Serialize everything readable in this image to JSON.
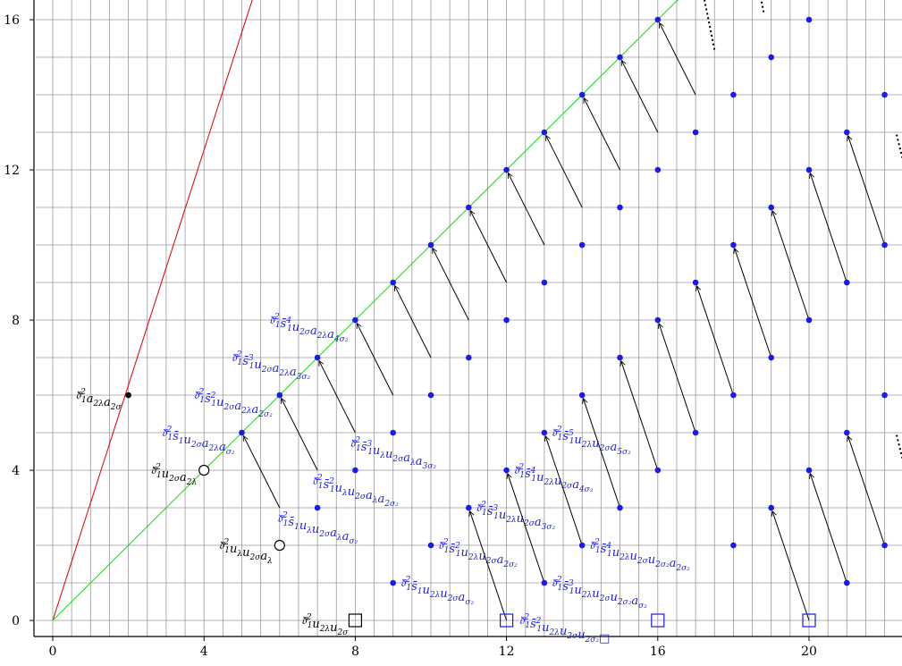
{
  "chart_data": {
    "type": "scatter",
    "xlim": [
      -0.5,
      22.5
    ],
    "ylim": [
      -0.5,
      17
    ],
    "grid": true,
    "x_ticks": [
      {
        "value": 0,
        "label": "0"
      },
      {
        "value": 4,
        "label": "4"
      },
      {
        "value": 8,
        "label": "8"
      },
      {
        "value": 12,
        "label": "12"
      },
      {
        "value": 16,
        "label": "16"
      },
      {
        "value": 20,
        "label": "20"
      }
    ],
    "y_ticks": [
      {
        "value": 0,
        "label": "0"
      },
      {
        "value": 4,
        "label": "4"
      },
      {
        "value": 8,
        "label": "8"
      },
      {
        "value": 12,
        "label": "12"
      },
      {
        "value": 16,
        "label": "16"
      }
    ],
    "colors": {
      "red": "#e01010",
      "green": "#22dd22",
      "blue": "#1a1aee",
      "black": "#000000",
      "grid": "#9a9a9a"
    },
    "lines": [
      {
        "name": "red-line",
        "color": "red",
        "from": [
          0,
          0
        ],
        "to": [
          5.3,
          16.6
        ],
        "dotted_from": [
          5.3,
          16.6
        ],
        "dotted_to": [
          5.5,
          17.3
        ]
      },
      {
        "name": "green-line",
        "color": "green",
        "from": [
          0,
          0
        ],
        "to": [
          16.5,
          16.5
        ],
        "dotted_from": [
          16.5,
          16.5
        ],
        "dotted_to": [
          17.0,
          17.1
        ]
      }
    ],
    "black_points": [
      {
        "x": 2,
        "y": 6,
        "shape": "dot"
      },
      {
        "x": 4,
        "y": 4,
        "shape": "circle"
      },
      {
        "x": 6,
        "y": 2,
        "shape": "circle"
      },
      {
        "x": 8,
        "y": 0,
        "shape": "square"
      }
    ],
    "blue_points": [
      {
        "x": 5,
        "y": 5
      },
      {
        "x": 6,
        "y": 6
      },
      {
        "x": 7,
        "y": 7
      },
      {
        "x": 8,
        "y": 8
      },
      {
        "x": 9,
        "y": 9
      },
      {
        "x": 10,
        "y": 10
      },
      {
        "x": 11,
        "y": 11
      },
      {
        "x": 12,
        "y": 12
      },
      {
        "x": 13,
        "y": 13
      },
      {
        "x": 14,
        "y": 14
      },
      {
        "x": 15,
        "y": 15
      },
      {
        "x": 16,
        "y": 16
      },
      {
        "x": 7,
        "y": 3
      },
      {
        "x": 8,
        "y": 4
      },
      {
        "x": 9,
        "y": 5
      },
      {
        "x": 10,
        "y": 6
      },
      {
        "x": 11,
        "y": 7
      },
      {
        "x": 12,
        "y": 8
      },
      {
        "x": 13,
        "y": 9
      },
      {
        "x": 14,
        "y": 10
      },
      {
        "x": 15,
        "y": 11
      },
      {
        "x": 16,
        "y": 12
      },
      {
        "x": 17,
        "y": 13
      },
      {
        "x": 18,
        "y": 14
      },
      {
        "x": 19,
        "y": 15
      },
      {
        "x": 20,
        "y": 16
      },
      {
        "x": 9,
        "y": 1
      },
      {
        "x": 10,
        "y": 2
      },
      {
        "x": 11,
        "y": 3
      },
      {
        "x": 12,
        "y": 4
      },
      {
        "x": 13,
        "y": 5
      },
      {
        "x": 14,
        "y": 6
      },
      {
        "x": 15,
        "y": 7
      },
      {
        "x": 16,
        "y": 8
      },
      {
        "x": 17,
        "y": 9
      },
      {
        "x": 18,
        "y": 10
      },
      {
        "x": 19,
        "y": 11
      },
      {
        "x": 20,
        "y": 12
      },
      {
        "x": 21,
        "y": 13
      },
      {
        "x": 22,
        "y": 14
      },
      {
        "x": 13,
        "y": 1
      },
      {
        "x": 14,
        "y": 2
      },
      {
        "x": 15,
        "y": 3
      },
      {
        "x": 16,
        "y": 4
      },
      {
        "x": 17,
        "y": 5
      },
      {
        "x": 18,
        "y": 6
      },
      {
        "x": 19,
        "y": 7
      },
      {
        "x": 20,
        "y": 8
      },
      {
        "x": 21,
        "y": 9
      },
      {
        "x": 22,
        "y": 10
      },
      {
        "x": 18,
        "y": 2
      },
      {
        "x": 19,
        "y": 3
      },
      {
        "x": 20,
        "y": 4
      },
      {
        "x": 21,
        "y": 5
      },
      {
        "x": 22,
        "y": 6
      },
      {
        "x": 21,
        "y": 1
      },
      {
        "x": 22,
        "y": 2
      }
    ],
    "blue_squares": [
      {
        "x": 12,
        "y": 0
      },
      {
        "x": 16,
        "y": 0
      },
      {
        "x": 20,
        "y": 0
      }
    ],
    "arrows": [
      {
        "from": [
          6,
          3
        ],
        "to": [
          5,
          5
        ]
      },
      {
        "from": [
          7,
          4
        ],
        "to": [
          6,
          6
        ]
      },
      {
        "from": [
          8,
          5
        ],
        "to": [
          7,
          7
        ]
      },
      {
        "from": [
          9,
          6
        ],
        "to": [
          8,
          8
        ]
      },
      {
        "from": [
          10,
          7
        ],
        "to": [
          9,
          9
        ]
      },
      {
        "from": [
          11,
          8
        ],
        "to": [
          10,
          10
        ]
      },
      {
        "from": [
          12,
          9
        ],
        "to": [
          11,
          11
        ]
      },
      {
        "from": [
          13,
          10
        ],
        "to": [
          12,
          12
        ]
      },
      {
        "from": [
          14,
          11
        ],
        "to": [
          13,
          13
        ]
      },
      {
        "from": [
          15,
          12
        ],
        "to": [
          14,
          14
        ]
      },
      {
        "from": [
          16,
          13
        ],
        "to": [
          15,
          15
        ]
      },
      {
        "from": [
          17,
          14
        ],
        "to": [
          16,
          16
        ]
      },
      {
        "from": [
          12,
          0
        ],
        "to": [
          11,
          3
        ]
      },
      {
        "from": [
          13,
          1
        ],
        "to": [
          12,
          4
        ]
      },
      {
        "from": [
          14,
          2
        ],
        "to": [
          13,
          5
        ]
      },
      {
        "from": [
          15,
          3
        ],
        "to": [
          14,
          6
        ]
      },
      {
        "from": [
          16,
          4
        ],
        "to": [
          15,
          7
        ]
      },
      {
        "from": [
          17,
          5
        ],
        "to": [
          16,
          8
        ]
      },
      {
        "from": [
          18,
          6
        ],
        "to": [
          17,
          9
        ]
      },
      {
        "from": [
          19,
          7
        ],
        "to": [
          18,
          10
        ]
      },
      {
        "from": [
          20,
          8
        ],
        "to": [
          19,
          11
        ]
      },
      {
        "from": [
          21,
          9
        ],
        "to": [
          20,
          12
        ]
      },
      {
        "from": [
          22,
          10
        ],
        "to": [
          21,
          13
        ]
      },
      {
        "from": [
          20,
          0
        ],
        "to": [
          19,
          3
        ]
      },
      {
        "from": [
          21,
          1
        ],
        "to": [
          20,
          4
        ]
      },
      {
        "from": [
          22,
          2
        ],
        "to": [
          21,
          5
        ]
      }
    ],
    "dotted_arrows": [
      {
        "from": [
          17.5,
          15.2
        ],
        "to": [
          17.1,
          17.2
        ]
      },
      {
        "from": [
          18.8,
          16.2
        ],
        "to": [
          18.6,
          17.2
        ]
      },
      {
        "from": [
          20.2,
          17.2
        ],
        "to": [
          20.0,
          17.6
        ]
      },
      {
        "from": [
          22.5,
          12.2
        ],
        "to": [
          22.3,
          13.0
        ]
      },
      {
        "from": [
          22.5,
          4.2
        ],
        "to": [
          22.3,
          5.0
        ]
      }
    ],
    "annotations": [
      {
        "x": 2,
        "y": 6,
        "color": "black",
        "anchor": "end",
        "parts": [
          [
            "𝔡̄",
            "1",
            "2"
          ],
          [
            "a",
            "2λ",
            ""
          ],
          [
            "a",
            "2σ",
            ""
          ]
        ]
      },
      {
        "x": 4,
        "y": 4,
        "color": "black",
        "anchor": "end",
        "parts": [
          [
            "𝔡̄",
            "1",
            "2"
          ],
          [
            "u",
            "2σ",
            ""
          ],
          [
            "a",
            "2λ",
            ""
          ]
        ]
      },
      {
        "x": 6,
        "y": 2,
        "color": "black",
        "anchor": "end",
        "parts": [
          [
            "𝔡̄",
            "1",
            "2"
          ],
          [
            "u",
            "λ",
            ""
          ],
          [
            "u",
            "2σ",
            ""
          ],
          [
            "a",
            "λ",
            ""
          ]
        ]
      },
      {
        "x": 8,
        "y": 0,
        "color": "black",
        "anchor": "end",
        "parts": [
          [
            "𝔡̄",
            "1",
            "2"
          ],
          [
            "u",
            "2λ",
            ""
          ],
          [
            "u",
            "2σ",
            ""
          ]
        ]
      },
      {
        "x": 5,
        "y": 5,
        "color": "blue",
        "anchor": "end",
        "parts": [
          [
            "𝔡̄",
            "1",
            "2"
          ],
          [
            "s̄",
            "1",
            ""
          ],
          [
            "u",
            "2σ",
            ""
          ],
          [
            "a",
            "2λ",
            ""
          ],
          [
            "a",
            "σ₂",
            ""
          ]
        ]
      },
      {
        "x": 6,
        "y": 6,
        "color": "blue",
        "anchor": "end",
        "parts": [
          [
            "𝔡̄",
            "1",
            "2"
          ],
          [
            "s̄",
            "1",
            "2"
          ],
          [
            "u",
            "2σ",
            ""
          ],
          [
            "a",
            "2λ",
            ""
          ],
          [
            "a",
            "2σ₂",
            ""
          ]
        ]
      },
      {
        "x": 7,
        "y": 7,
        "color": "blue",
        "anchor": "end",
        "parts": [
          [
            "𝔡̄",
            "1",
            "2"
          ],
          [
            "s̄",
            "1",
            "3"
          ],
          [
            "u",
            "2σ",
            ""
          ],
          [
            "a",
            "2λ",
            ""
          ],
          [
            "a",
            "3σ₂",
            ""
          ]
        ]
      },
      {
        "x": 8,
        "y": 8,
        "color": "blue",
        "anchor": "end",
        "parts": [
          [
            "𝔡̄",
            "1",
            "2"
          ],
          [
            "s̄",
            "1",
            "4"
          ],
          [
            "u",
            "2σ",
            ""
          ],
          [
            "a",
            "2λ",
            ""
          ],
          [
            "a",
            "4σ₂",
            ""
          ]
        ]
      },
      {
        "x": 7,
        "y": 3,
        "color": "blue",
        "anchor": "mid",
        "parts": [
          [
            "𝔡̄",
            "1",
            "2"
          ],
          [
            "s̄",
            "1",
            ""
          ],
          [
            "u",
            "λ",
            ""
          ],
          [
            "u",
            "2σ",
            ""
          ],
          [
            "a",
            "λ",
            ""
          ],
          [
            "a",
            "σ₂",
            ""
          ]
        ]
      },
      {
        "x": 8,
        "y": 4,
        "color": "blue",
        "anchor": "mid",
        "parts": [
          [
            "𝔡̄",
            "1",
            "2"
          ],
          [
            "s̄",
            "1",
            "2"
          ],
          [
            "u",
            "λ",
            ""
          ],
          [
            "u",
            "2σ",
            ""
          ],
          [
            "a",
            "λ",
            ""
          ],
          [
            "a",
            "2σ₂",
            ""
          ]
        ]
      },
      {
        "x": 9,
        "y": 5,
        "color": "blue",
        "anchor": "mid",
        "parts": [
          [
            "𝔡̄",
            "1",
            "2"
          ],
          [
            "s̄",
            "1",
            "3"
          ],
          [
            "u",
            "λ",
            ""
          ],
          [
            "u",
            "2σ",
            ""
          ],
          [
            "a",
            "λ",
            ""
          ],
          [
            "a",
            "3σ₂",
            ""
          ]
        ]
      },
      {
        "x": 9,
        "y": 1,
        "color": "blue",
        "anchor": "start",
        "parts": [
          [
            "𝔡̄",
            "1",
            "2"
          ],
          [
            "s̄",
            "1",
            ""
          ],
          [
            "u",
            "2λ",
            ""
          ],
          [
            "u",
            "2σ",
            ""
          ],
          [
            "a",
            "σ₂",
            ""
          ]
        ]
      },
      {
        "x": 10,
        "y": 2,
        "color": "blue",
        "anchor": "start",
        "parts": [
          [
            "𝔡̄",
            "1",
            "2"
          ],
          [
            "s̄",
            "1",
            "2"
          ],
          [
            "u",
            "2λ",
            ""
          ],
          [
            "u",
            "2σ",
            ""
          ],
          [
            "a",
            "2σ₂",
            ""
          ]
        ]
      },
      {
        "x": 11,
        "y": 3,
        "color": "blue",
        "anchor": "start",
        "parts": [
          [
            "𝔡̄",
            "1",
            "2"
          ],
          [
            "s̄",
            "1",
            "3"
          ],
          [
            "u",
            "2λ",
            ""
          ],
          [
            "u",
            "2σ",
            ""
          ],
          [
            "a",
            "3σ₂",
            ""
          ]
        ]
      },
      {
        "x": 12,
        "y": 4,
        "color": "blue",
        "anchor": "start",
        "parts": [
          [
            "𝔡̄",
            "1",
            "2"
          ],
          [
            "s̄",
            "1",
            "4"
          ],
          [
            "u",
            "2λ",
            ""
          ],
          [
            "u",
            "2σ",
            ""
          ],
          [
            "a",
            "4σ₂",
            ""
          ]
        ]
      },
      {
        "x": 13,
        "y": 5,
        "color": "blue",
        "anchor": "start",
        "parts": [
          [
            "𝔡̄",
            "1",
            "2"
          ],
          [
            "s̄",
            "1",
            "5"
          ],
          [
            "u",
            "2λ",
            ""
          ],
          [
            "u",
            "2σ",
            ""
          ],
          [
            "a",
            "5σ₂",
            ""
          ]
        ]
      },
      {
        "x": 12,
        "y": 0,
        "color": "blue",
        "anchor": "start",
        "parts": [
          [
            "𝔡̄",
            "1",
            "2"
          ],
          [
            "s̄",
            "1",
            "2"
          ],
          [
            "u",
            "2λ",
            ""
          ],
          [
            "u",
            "2σ",
            ""
          ],
          [
            "u",
            "2σ₂",
            ""
          ]
        ],
        "box": true
      },
      {
        "x": 13,
        "y": 1,
        "color": "blue",
        "anchor": "start",
        "parts": [
          [
            "𝔡̄",
            "1",
            "2"
          ],
          [
            "s̄",
            "1",
            "3"
          ],
          [
            "u",
            "2λ",
            ""
          ],
          [
            "u",
            "2σ",
            ""
          ],
          [
            "u",
            "2σ₂",
            ""
          ],
          [
            "a",
            "σ₂",
            ""
          ]
        ]
      },
      {
        "x": 14,
        "y": 2,
        "color": "blue",
        "anchor": "start",
        "parts": [
          [
            "𝔡̄",
            "1",
            "2"
          ],
          [
            "s̄",
            "1",
            "4"
          ],
          [
            "u",
            "2λ",
            ""
          ],
          [
            "u",
            "2σ",
            ""
          ],
          [
            "u",
            "2σ₂",
            ""
          ],
          [
            "a",
            "2σ₂",
            ""
          ]
        ]
      }
    ]
  }
}
